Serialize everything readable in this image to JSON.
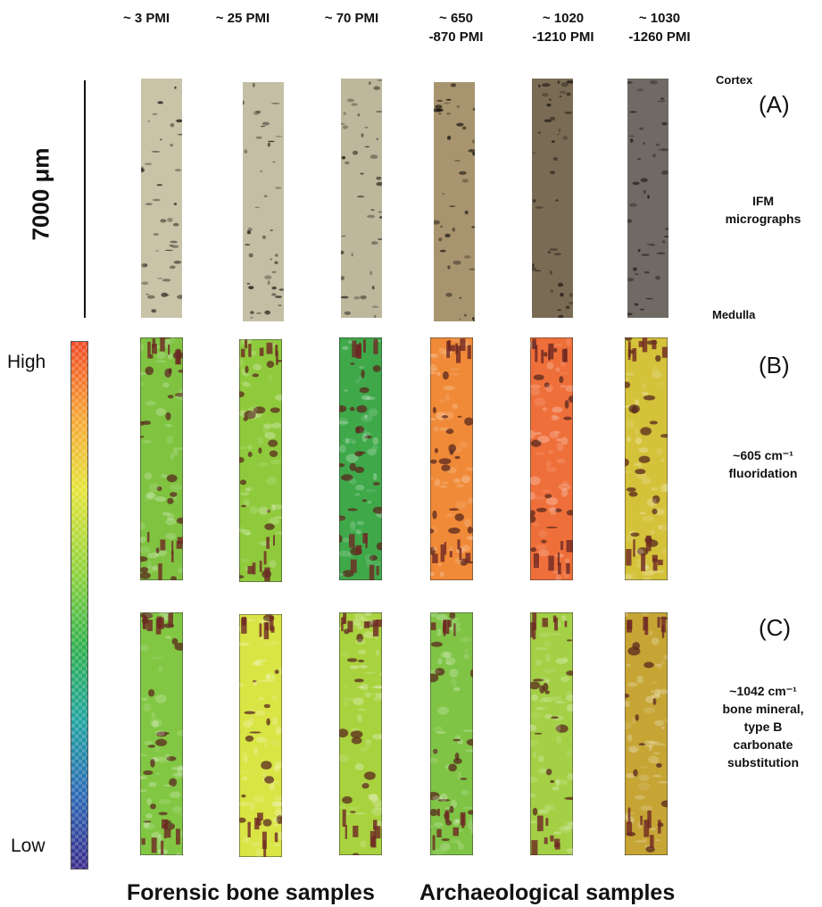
{
  "columns": [
    {
      "label": "~ 3 PMI"
    },
    {
      "label": "~ 25 PMI"
    },
    {
      "label": "~ 70 PMI"
    },
    {
      "label": "~ 650\n-870 PMI"
    },
    {
      "label": "~ 1020\n-1210 PMI"
    },
    {
      "label": "~ 1030\n-1260 PMI"
    }
  ],
  "scale": {
    "label": "7000 μm"
  },
  "orientation": {
    "top": "Cortex",
    "bottom": "Medulla"
  },
  "panels": [
    {
      "letter": "(A)",
      "description": "IFM\nmicrographs"
    },
    {
      "letter": "(B)",
      "description": "~605 cm⁻¹\nfluoridation"
    },
    {
      "letter": "(C)",
      "description": "~1042 cm⁻¹\nbone mineral,\ntype B\ncarbonate\nsubstitution"
    }
  ],
  "colorbar": {
    "high": "High",
    "low": "Low"
  },
  "groups": {
    "forensic": "Forensic bone samples",
    "archaeological": "Archaeological samples"
  },
  "colors": {
    "micro": [
      "#c9c3a8",
      "#c4bfa4",
      "#bdb79c",
      "#a8946f",
      "#7a6b55",
      "#6f6a63"
    ],
    "mapB": [
      "#7fc341",
      "#8fca3c",
      "#3fa94a",
      "#f08a38",
      "#ef6f3a",
      "#d4c23a"
    ],
    "mapC": [
      "#82c743",
      "#d9e545",
      "#a9d23f",
      "#7fc445",
      "#a3d045",
      "#c6a535"
    ]
  }
}
